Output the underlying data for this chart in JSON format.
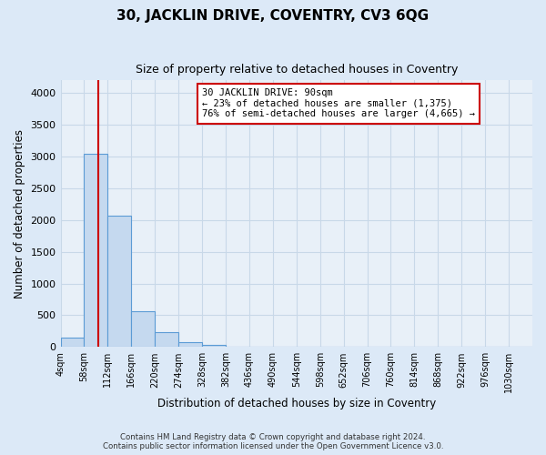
{
  "title": "30, JACKLIN DRIVE, COVENTRY, CV3 6QG",
  "subtitle": "Size of property relative to detached houses in Coventry",
  "xlabel": "Distribution of detached houses by size in Coventry",
  "ylabel": "Number of detached properties",
  "footnote1": "Contains HM Land Registry data © Crown copyright and database right 2024.",
  "footnote2": "Contains public sector information licensed under the Open Government Licence v3.0.",
  "annotation_title": "30 JACKLIN DRIVE: 90sqm",
  "annotation_line1": "← 23% of detached houses are smaller (1,375)",
  "annotation_line2": "76% of semi-detached houses are larger (4,665) →",
  "property_size": 90,
  "bin_edges": [
    4,
    58,
    112,
    166,
    220,
    274,
    328,
    382,
    436,
    490,
    544,
    598,
    652,
    706,
    760,
    814,
    868,
    922,
    976,
    1030,
    1084
  ],
  "bar_heights": [
    150,
    3050,
    2070,
    560,
    230,
    80,
    30,
    10,
    5,
    3,
    2,
    1,
    1,
    1,
    1,
    0,
    0,
    0,
    0,
    0
  ],
  "bar_color": "#c5d9ef",
  "bar_edge_color": "#5b9bd5",
  "red_line_color": "#cc0000",
  "annotation_box_color": "#ffffff",
  "annotation_box_edge": "#cc0000",
  "background_color": "#dce9f7",
  "plot_bg_color": "#e8f0f8",
  "grid_color": "#c8d8e8",
  "ylim": [
    0,
    4200
  ],
  "yticks": [
    0,
    500,
    1000,
    1500,
    2000,
    2500,
    3000,
    3500,
    4000
  ]
}
